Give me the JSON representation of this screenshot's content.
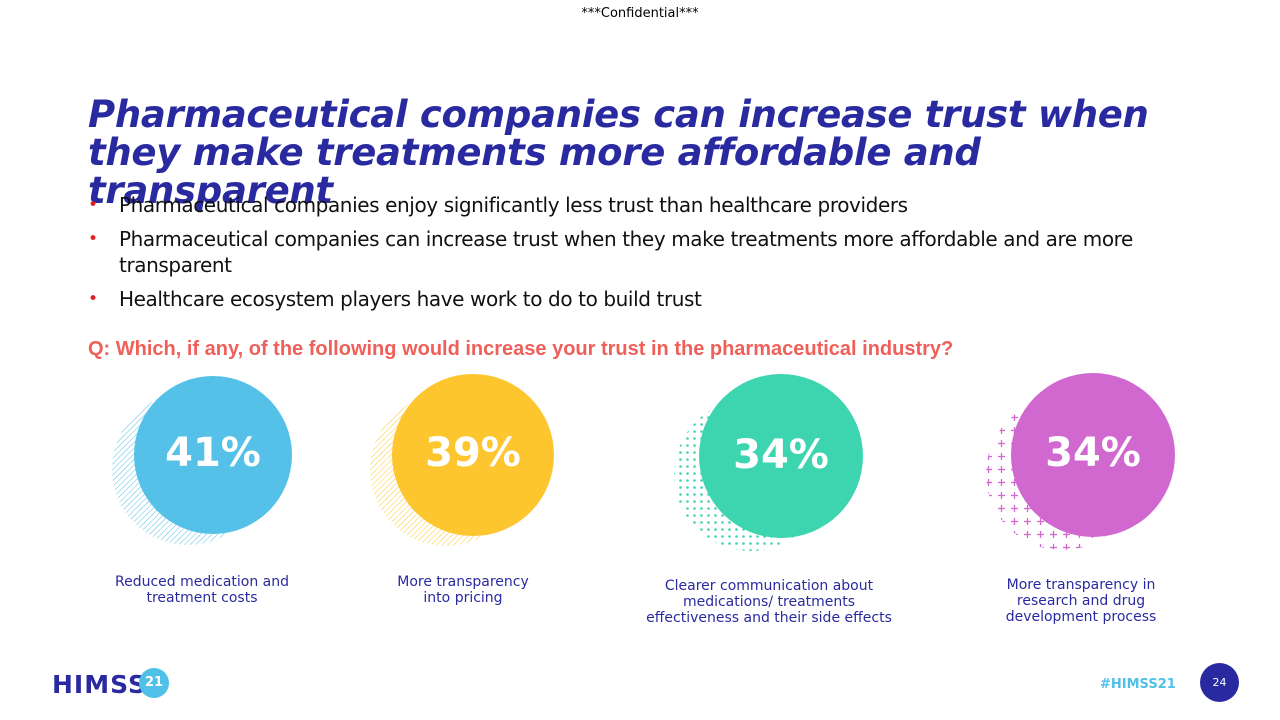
{
  "header": {
    "confidential": "***Confidential***"
  },
  "title": "Pharmaceutical companies can increase trust when they make treatments more affordable and transparent",
  "bullets": [
    {
      "text": "Pharmaceutical companies enjoy significantly less trust than healthcare providers"
    },
    {
      "text": "Pharmaceutical companies can increase trust when they make treatments more affordable and are more transparent"
    },
    {
      "text": "Healthcare ecosystem players have work to do to build trust"
    }
  ],
  "question": "Q: Which, if any, of the following would increase your trust in the pharmaceutical industry?",
  "stats": [
    {
      "value": "41%",
      "caption": "Reduced medication and treatment costs",
      "color": "#56c1e8",
      "pattern": "lines"
    },
    {
      "value": "39%",
      "caption": "More transparency into pricing",
      "color": "#fdc52e",
      "pattern": "lines"
    },
    {
      "value": "34%",
      "caption": "Clearer communication about medications/ treatments effectiveness and their side effects",
      "color": "#3dd4b0",
      "pattern": "dots"
    },
    {
      "value": "34%",
      "caption": "More transparency in research and drug development process",
      "color": "#d068d0",
      "pattern": "plus"
    }
  ],
  "footer": {
    "logo_text": "HIMSS",
    "logo_badge": "21",
    "hashtag": "#HIMSS21",
    "page_number": "24"
  }
}
